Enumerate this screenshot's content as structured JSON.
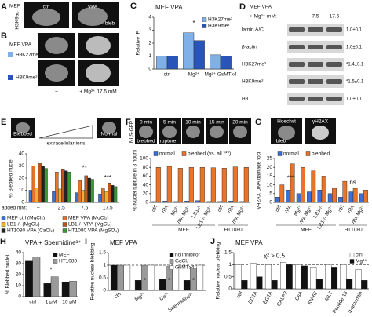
{
  "figure": {
    "panel_a": {
      "letter": "A",
      "cell": "MEF",
      "stain": "H3K9ac",
      "labels": [
        "ctrl",
        "VPA"
      ],
      "bleb": "bleb"
    },
    "panel_b": {
      "letter": "B",
      "cell": "MEF VPA",
      "stains": [
        "H3K27me³",
        "H3K9me²"
      ],
      "conditions": [
        "–",
        "+ Mg²⁺ 17.5 mM"
      ]
    },
    "panel_d": {
      "letter": "D",
      "cell": "MEF VPA",
      "treatment": "+ Mg²⁺ mM:",
      "columns": [
        "–",
        "7.5",
        "17.5"
      ],
      "rows": [
        [
          "lamin A/C",
          "1.0±0.1"
        ],
        [
          "β-actin",
          "1.0±0.1"
        ],
        [
          "H3K27me³",
          "*1.4±0.1"
        ],
        [
          "H3K9me²",
          "*1.5±0.1"
        ],
        [
          "H3",
          "1.0±0.1"
        ]
      ]
    },
    "panel_e": {
      "blebbed": "Blebbed",
      "normal": "Normal",
      "gradient": "extracellular ions"
    },
    "panel_f": {
      "reporter": "NLS-GFP",
      "times": [
        "0 min",
        "5 min",
        "10 min",
        "15 min",
        "20 min"
      ],
      "blebbed": "blebbed",
      "rupture": "rupture"
    },
    "panel_g": {
      "stains": [
        "Hoechst",
        "γH2AX"
      ],
      "bleb": "bleb"
    }
  },
  "chart_data": [
    {
      "type": "bar",
      "panel": "C",
      "title": "MEF VPA",
      "ylabel": "Relative IF",
      "categories": [
        "ctrl",
        "Mg²⁺",
        "Mg²⁺ GsMTx4"
      ],
      "series": [
        {
          "name": "H3K27me³",
          "color": "#7fb0e8",
          "values": [
            1.0,
            2.8,
            1.1
          ]
        },
        {
          "name": "H3K9me²",
          "color": "#2a55b8",
          "values": [
            1.0,
            2.2,
            1.0
          ]
        }
      ],
      "ylim": [
        0,
        4
      ],
      "yticks": [
        0,
        1,
        2,
        3,
        4
      ],
      "hline": 1,
      "legend": "top-right",
      "annotations": [
        "*"
      ]
    },
    {
      "type": "bar",
      "panel": "E",
      "ylabel": "% Blebbed nuclei",
      "xlabel": "added mM:",
      "categories": [
        "–",
        "2.5",
        "7.5",
        "17.5"
      ],
      "series": [
        {
          "name": "MEF ctrl (MgCl₂)",
          "color": "#3a6fd8",
          "values": [
            10,
            9,
            8,
            7
          ]
        },
        {
          "name": "MEF VPA (MgCl₂)",
          "color": "#e8742a",
          "values": [
            30,
            25,
            18,
            12
          ]
        },
        {
          "name": "LB1-/- (MgCl₂)",
          "color": "#f0b030",
          "values": [
            12,
            11,
            10,
            9
          ]
        },
        {
          "name": "LB1-/- VPA (MgCl₂)",
          "color": "#c0561a",
          "values": [
            32,
            27,
            22,
            16
          ]
        },
        {
          "name": "HT1080 VPA (CaCl₂)",
          "color": "#222222",
          "values": [
            30,
            26,
            20,
            14
          ]
        },
        {
          "name": "HT1080 VPA (MgSO₄)",
          "color": "#3a9a3a",
          "values": [
            28,
            25,
            19,
            13
          ]
        }
      ],
      "ylim": [
        0,
        40
      ],
      "yticks": [
        0,
        10,
        20,
        30,
        40
      ],
      "legend": "bottom",
      "annotations": [
        "**",
        "***"
      ]
    },
    {
      "type": "bar",
      "panel": "F",
      "ylabel": "% Nuclei rupture in 3 hours",
      "categories": [
        "ctrl",
        "VPA",
        "Mg²⁺",
        "VPA Mg²⁺",
        "LB1-/-",
        "LB1-/- Mg²⁺",
        "ctrl",
        "VPA",
        "VPA Mg²⁺"
      ],
      "group_labels": [
        "MEF",
        "HT1080"
      ],
      "series": [
        {
          "name": "normal",
          "color": "#3a6fd8",
          "values": [
            2,
            3,
            2,
            3,
            4,
            2,
            2,
            3,
            2
          ]
        },
        {
          "name": "blebbed (vs. all ***)",
          "color": "#e8742a",
          "values": [
            80,
            82,
            78,
            80,
            80,
            79,
            78,
            81,
            80
          ]
        }
      ],
      "ylim": [
        0,
        100
      ],
      "yticks": [
        0,
        20,
        40,
        60,
        80,
        100
      ],
      "legend": "top"
    },
    {
      "type": "bar",
      "panel": "G",
      "ylabel": "γH2AX DNA damage foci",
      "categories": [
        "ctrl",
        "VPA",
        "Mg²⁺",
        "VPA Mg²⁺",
        "LB1-/-",
        "LB1-/- Mg²⁺",
        "ctrl",
        "VPA",
        "VPA Mg²⁺"
      ],
      "group_labels": [
        "MEF",
        "HT1080"
      ],
      "series": [
        {
          "name": "normal",
          "color": "#3a6fd8",
          "values": [
            3,
            7,
            5,
            6,
            7,
            5,
            3,
            6,
            5
          ]
        },
        {
          "name": "blebbed",
          "color": "#e8742a",
          "values": [
            10,
            22,
            20,
            18,
            15,
            8,
            12,
            8,
            7
          ]
        }
      ],
      "ylim": [
        0,
        25
      ],
      "yticks": [
        0,
        5,
        10,
        15,
        20,
        25
      ],
      "legend": "top",
      "annotations": [
        "***",
        "ns"
      ]
    },
    {
      "type": "bar",
      "panel": "H",
      "title": "VPA + Spermidine³⁺",
      "ylabel": "% Blebbed nuclei",
      "categories": [
        "ctrl",
        "1 μM",
        "10 μM"
      ],
      "series": [
        {
          "name": "MEF",
          "color": "#111111",
          "values": [
            33,
            12,
            13
          ]
        },
        {
          "name": "HT1080",
          "color": "#9a9a9a",
          "values": [
            36,
            18,
            14
          ]
        }
      ],
      "ylim": [
        0,
        40
      ],
      "yticks": [
        0,
        10,
        20,
        30,
        40
      ],
      "legend": "top-right",
      "annotations": [
        "*"
      ]
    },
    {
      "type": "bar",
      "panel": "I",
      "title": "MEF VPA",
      "ylabel": "Relative nuclear blebbing",
      "categories": [
        "ctrl",
        "Mg²⁺",
        "Ca²⁺",
        "Spermidine³⁺"
      ],
      "series": [
        {
          "name": "no inhibitor",
          "color": "#111111",
          "values": [
            1.0,
            0.4,
            0.45,
            0.4
          ]
        },
        {
          "name": "GdCl₃",
          "color": "#9a9a9a",
          "values": [
            1.0,
            1.0,
            0.95,
            0.9
          ]
        },
        {
          "name": "GsMTx4",
          "color": "#ffffff",
          "values": [
            1.0,
            1.0,
            1.05,
            1.0
          ]
        }
      ],
      "ylim": [
        0,
        1.5
      ],
      "yticks": [
        0,
        0.5,
        1,
        1.5
      ],
      "hline": 1,
      "legend": "top-right",
      "annotations": [
        "*",
        "*",
        "*"
      ]
    },
    {
      "type": "bar",
      "panel": "J",
      "title": "MEF VPA",
      "ylabel": "Relative nuclear blebbing",
      "categories": [
        "ctrl",
        "EDTA",
        "EGTA",
        "CALP2",
        "CsA",
        "KN-62",
        "ML7",
        "Peptide 18",
        "α-amanitin"
      ],
      "series": [
        {
          "name": "ctrl",
          "color": "#ffffff",
          "values": [
            1.0,
            1.05,
            1.0,
            1.1,
            1.0,
            0.9,
            1.0,
            1.0,
            0.8
          ]
        },
        {
          "name": "Mg²⁺",
          "color": "#111111",
          "values": [
            0.35,
            0.5,
            0.35,
            1.0,
            0.95,
            0.4,
            0.9,
            0.4,
            0.35
          ]
        }
      ],
      "ylim": [
        0,
        1.5
      ],
      "yticks": [
        0,
        0.5,
        1,
        1.5
      ],
      "hline": 1,
      "legend": "top-right",
      "annotations": [
        "χ² > 0.5"
      ]
    }
  ]
}
